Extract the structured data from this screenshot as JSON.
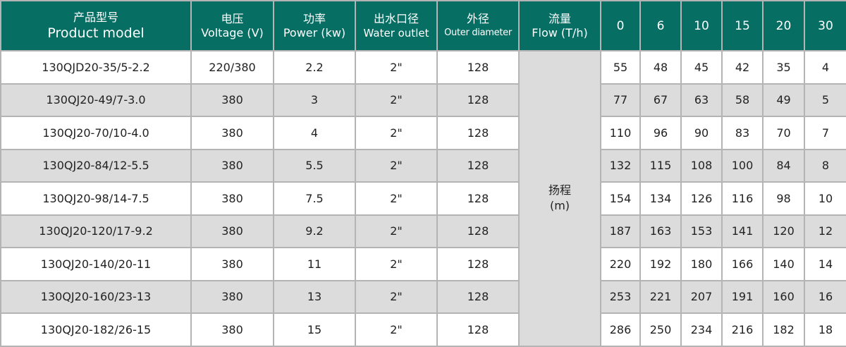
{
  "header": {
    "model": {
      "cn": "产品型号",
      "en": "Product model"
    },
    "voltage": {
      "cn": "电压",
      "en": "Voltage (V)"
    },
    "power": {
      "cn": "功率",
      "en": "Power (kw)"
    },
    "outlet": {
      "cn": "出水口径",
      "en": "Water outlet"
    },
    "diameter": {
      "cn": "外径",
      "en": "Outer diameter"
    },
    "flow": {
      "cn": "流量",
      "en": "Flow (T/h)"
    },
    "flow_points": [
      "0",
      "6",
      "10",
      "15",
      "20",
      "30"
    ]
  },
  "head_label": {
    "cn": "扬程",
    "unit": "(m)"
  },
  "rows": [
    {
      "model": "130QJD20-35/5-2.2",
      "voltage": "220/380",
      "power": "2.2",
      "outlet": "2\"",
      "diameter": "128",
      "heads": [
        "55",
        "48",
        "45",
        "42",
        "35",
        "4"
      ]
    },
    {
      "model": "130QJ20-49/7-3.0",
      "voltage": "380",
      "power": "3",
      "outlet": "2\"",
      "diameter": "128",
      "heads": [
        "77",
        "67",
        "63",
        "58",
        "49",
        "5"
      ]
    },
    {
      "model": "130QJ20-70/10-4.0",
      "voltage": "380",
      "power": "4",
      "outlet": "2\"",
      "diameter": "128",
      "heads": [
        "110",
        "96",
        "90",
        "83",
        "70",
        "7"
      ]
    },
    {
      "model": "130QJ20-84/12-5.5",
      "voltage": "380",
      "power": "5.5",
      "outlet": "2\"",
      "diameter": "128",
      "heads": [
        "132",
        "115",
        "108",
        "100",
        "84",
        "8"
      ]
    },
    {
      "model": "130QJ20-98/14-7.5",
      "voltage": "380",
      "power": "7.5",
      "outlet": "2\"",
      "diameter": "128",
      "heads": [
        "154",
        "134",
        "126",
        "116",
        "98",
        "10"
      ]
    },
    {
      "model": "130QJ20-120/17-9.2",
      "voltage": "380",
      "power": "9.2",
      "outlet": "2\"",
      "diameter": "128",
      "heads": [
        "187",
        "163",
        "153",
        "141",
        "120",
        "12"
      ]
    },
    {
      "model": "130QJ20-140/20-11",
      "voltage": "380",
      "power": "11",
      "outlet": "2\"",
      "diameter": "128",
      "heads": [
        "220",
        "192",
        "180",
        "166",
        "140",
        "14"
      ]
    },
    {
      "model": "130QJ20-160/23-13",
      "voltage": "380",
      "power": "13",
      "outlet": "2\"",
      "diameter": "128",
      "heads": [
        "253",
        "221",
        "207",
        "191",
        "160",
        "16"
      ]
    },
    {
      "model": "130QJ20-182/26-15",
      "voltage": "380",
      "power": "15",
      "outlet": "2\"",
      "diameter": "128",
      "heads": [
        "286",
        "250",
        "234",
        "216",
        "182",
        "18"
      ]
    }
  ],
  "colors": {
    "header_bg": "#076e64",
    "alt_row_bg": "#dcdcdc",
    "border": "#b4b4b4"
  }
}
